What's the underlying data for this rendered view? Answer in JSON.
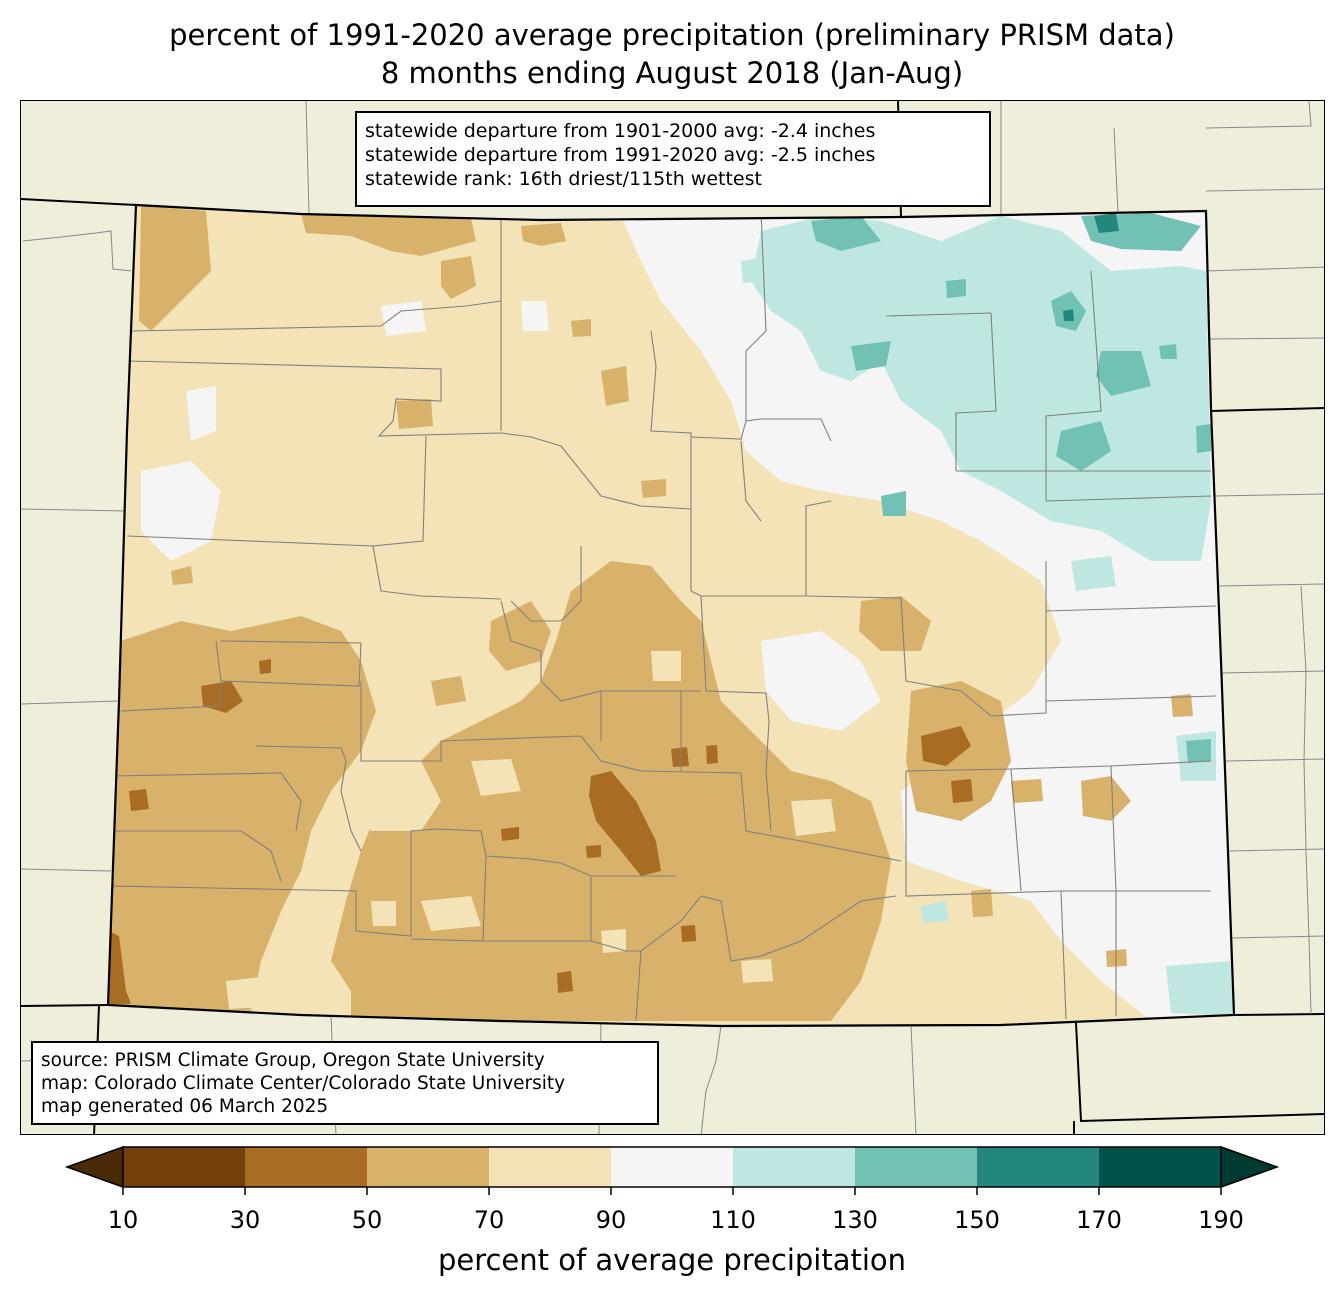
{
  "title": {
    "line1": "percent of 1991-2020 average precipitation (preliminary PRISM data)",
    "line2": "8 months ending August 2018 (Jan-Aug)"
  },
  "stats": {
    "line1": "statewide departure from 1901-2000 avg: -2.4 inches",
    "line2": "statewide departure from 1991-2020 avg: -2.5 inches",
    "line3": "statewide rank: 16th driest/115th wettest"
  },
  "source": {
    "line1": "source: PRISM Climate Group, Oregon State University",
    "line2": "map: Colorado Climate Center/Colorado State University",
    "line3": "map generated 06 March 2025"
  },
  "colorbar": {
    "label": "percent of average precipitation",
    "ticks": [
      "10",
      "30",
      "50",
      "70",
      "90",
      "110",
      "130",
      "150",
      "170",
      "190"
    ],
    "colors": [
      "#733f0b",
      "#a86c22",
      "#d8b26b",
      "#f3e3b7",
      "#f4f5f4",
      "#bfe7e1",
      "#72c1b5",
      "#23877e",
      "#00524a"
    ],
    "under_color": "#4b2b07",
    "over_color": "#003b33"
  },
  "map_colors": {
    "land_outside": "#efeedb",
    "state_border": "#000000",
    "county_lines": "#808080"
  }
}
